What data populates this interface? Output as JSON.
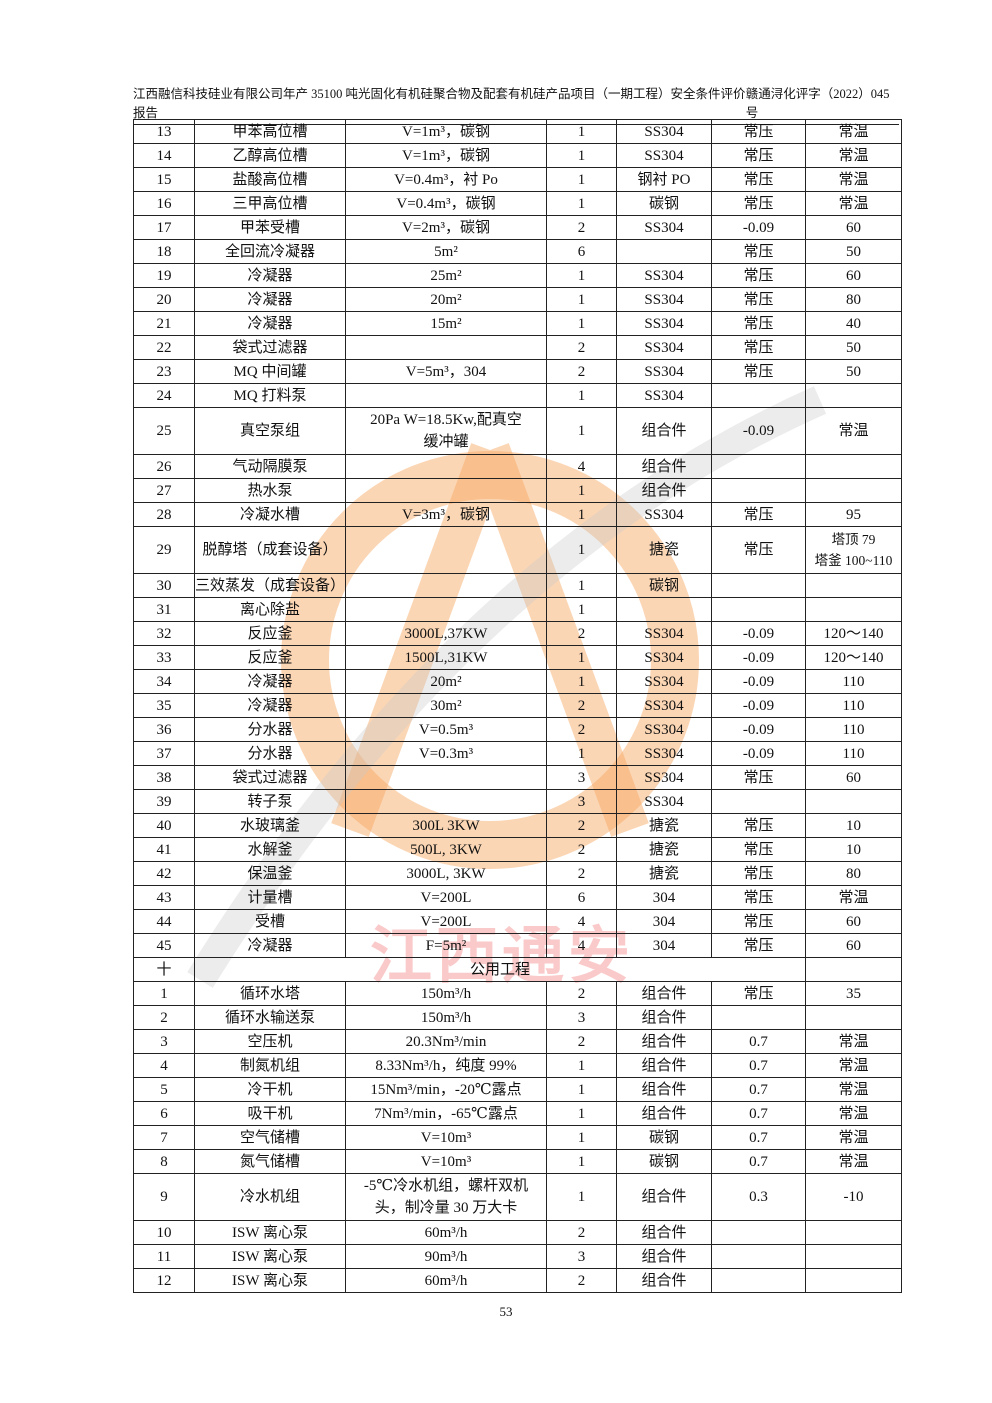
{
  "header": {
    "title": "江西融信科技硅业有限公司年产 35100 吨光固化有机硅聚合物及配套有机硅产品项目（一期工程）安全条件评价报告",
    "code": "赣通浔化评字（2022）045 号"
  },
  "rows": [
    [
      "13",
      "甲苯高位槽",
      "V=1m³，碳钢",
      "1",
      "SS304",
      "常压",
      "常温"
    ],
    [
      "14",
      "乙醇高位槽",
      "V=1m³，碳钢",
      "1",
      "SS304",
      "常压",
      "常温"
    ],
    [
      "15",
      "盐酸高位槽",
      "V=0.4m³，衬 Po",
      "1",
      "钢衬 PO",
      "常压",
      "常温"
    ],
    [
      "16",
      "三甲高位槽",
      "V=0.4m³，碳钢",
      "1",
      "碳钢",
      "常压",
      "常温"
    ],
    [
      "17",
      "甲苯受槽",
      "V=2m³，碳钢",
      "2",
      "SS304",
      "-0.09",
      "60"
    ],
    [
      "18",
      "全回流冷凝器",
      "5m²",
      "6",
      "",
      "常压",
      "50"
    ],
    [
      "19",
      "冷凝器",
      "25m²",
      "1",
      "SS304",
      "常压",
      "60"
    ],
    [
      "20",
      "冷凝器",
      "20m²",
      "1",
      "SS304",
      "常压",
      "80"
    ],
    [
      "21",
      "冷凝器",
      "15m²",
      "1",
      "SS304",
      "常压",
      "40"
    ],
    [
      "22",
      "袋式过滤器",
      "",
      "2",
      "SS304",
      "常压",
      "50"
    ],
    [
      "23",
      "MQ 中间罐",
      "V=5m³，304",
      "2",
      "SS304",
      "常压",
      "50"
    ],
    [
      "24",
      "MQ 打料泵",
      "",
      "1",
      "SS304",
      "",
      ""
    ],
    [
      "25",
      "真空泵组",
      "20Pa W=18.5Kw,配真空\n缓冲罐",
      "1",
      "组合件",
      "-0.09",
      "常温"
    ],
    [
      "26",
      "气动隔膜泵",
      "",
      "4",
      "组合件",
      "",
      ""
    ],
    [
      "27",
      "热水泵",
      "",
      "1",
      "组合件",
      "",
      ""
    ],
    [
      "28",
      "冷凝水槽",
      "V=3m³，碳钢",
      "1",
      "SS304",
      "常压",
      "95"
    ],
    [
      "29",
      "脱醇塔（成套设备）",
      "",
      "1",
      "搪瓷",
      "常压",
      "塔顶 79\n塔釜 100~110"
    ],
    [
      "30",
      "三效蒸发（成套设备）",
      "",
      "1",
      "碳钢",
      "",
      ""
    ],
    [
      "31",
      "离心除盐",
      "",
      "1",
      "",
      "",
      ""
    ],
    [
      "32",
      "反应釜",
      "3000L,37KW",
      "2",
      "SS304",
      "-0.09",
      "120～140"
    ],
    [
      "33",
      "反应釜",
      "1500L,31KW",
      "1",
      "SS304",
      "-0.09",
      "120～140"
    ],
    [
      "34",
      "冷凝器",
      "20m²",
      "1",
      "SS304",
      "-0.09",
      "110"
    ],
    [
      "35",
      "冷凝器",
      "30m²",
      "2",
      "SS304",
      "-0.09",
      "110"
    ],
    [
      "36",
      "分水器",
      "V=0.5m³",
      "2",
      "SS304",
      "-0.09",
      "110"
    ],
    [
      "37",
      "分水器",
      "V=0.3m³",
      "1",
      "SS304",
      "-0.09",
      "110"
    ],
    [
      "38",
      "袋式过滤器",
      "",
      "3",
      "SS304",
      "常压",
      "60"
    ],
    [
      "39",
      "转子泵",
      "",
      "3",
      "SS304",
      "",
      ""
    ],
    [
      "40",
      "水玻璃釜",
      "300L 3KW",
      "2",
      "搪瓷",
      "常压",
      "10"
    ],
    [
      "41",
      "水解釜",
      "500L, 3KW",
      "2",
      "搪瓷",
      "常压",
      "10"
    ],
    [
      "42",
      "保温釜",
      "3000L, 3KW",
      "2",
      "搪瓷",
      "常压",
      "80"
    ],
    [
      "43",
      "计量槽",
      "V=200L",
      "6",
      "304",
      "常压",
      "常温"
    ],
    [
      "44",
      "受槽",
      "V=200L",
      "4",
      "304",
      "常压",
      "60"
    ],
    [
      "45",
      "冷凝器",
      "F=5m²",
      "4",
      "304",
      "常压",
      "60"
    ]
  ],
  "section": {
    "no": "十",
    "title": "公用工程"
  },
  "rows2": [
    [
      "1",
      "循环水塔",
      "150m³/h",
      "2",
      "组合件",
      "常压",
      "35"
    ],
    [
      "2",
      "循环水输送泵",
      "150m³/h",
      "3",
      "组合件",
      "",
      ""
    ],
    [
      "3",
      "空压机",
      "20.3Nm³/min",
      "2",
      "组合件",
      "0.7",
      "常温"
    ],
    [
      "4",
      "制氮机组",
      "8.33Nm³/h，纯度 99%",
      "1",
      "组合件",
      "0.7",
      "常温"
    ],
    [
      "5",
      "冷干机",
      "15Nm³/min，-20℃露点",
      "1",
      "组合件",
      "0.7",
      "常温"
    ],
    [
      "6",
      "吸干机",
      "7Nm³/min，-65℃露点",
      "1",
      "组合件",
      "0.7",
      "常温"
    ],
    [
      "7",
      "空气储槽",
      "V=10m³",
      "1",
      "碳钢",
      "0.7",
      "常温"
    ],
    [
      "8",
      "氮气储槽",
      "V=10m³",
      "1",
      "碳钢",
      "0.7",
      "常温"
    ],
    [
      "9",
      "冷水机组",
      "-5℃冷水机组，螺杆双机\n头，制冷量 30 万大卡",
      "1",
      "组合件",
      "0.3",
      "-10"
    ],
    [
      "10",
      "ISW 离心泵",
      "60m³/h",
      "2",
      "组合件",
      "",
      ""
    ],
    [
      "11",
      "ISW 离心泵",
      "90m³/h",
      "3",
      "组合件",
      "",
      ""
    ],
    [
      "12",
      "ISW 离心泵",
      "60m³/h",
      "2",
      "组合件",
      "",
      ""
    ]
  ],
  "watermark": {
    "text": "江西通安",
    "colors": {
      "orange": "#f7a35c",
      "red": "#f26a6a",
      "gray": "#c8c8c8"
    }
  },
  "page_number": "53"
}
